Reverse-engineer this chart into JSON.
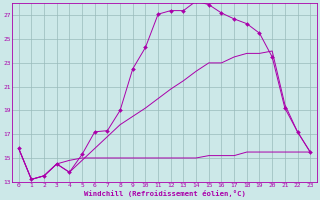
{
  "xlabel": "Windchill (Refroidissement éolien,°C)",
  "bg_color": "#cce8e8",
  "line_color": "#aa00aa",
  "grid_color": "#99bbbb",
  "xlim": [
    -0.5,
    23.5
  ],
  "ylim": [
    13,
    28
  ],
  "xticks": [
    0,
    1,
    2,
    3,
    4,
    5,
    6,
    7,
    8,
    9,
    10,
    11,
    12,
    13,
    14,
    15,
    16,
    17,
    18,
    19,
    20,
    21,
    22,
    23
  ],
  "yticks": [
    13,
    15,
    17,
    19,
    21,
    23,
    25,
    27
  ],
  "series1_x": [
    0,
    1,
    2,
    3,
    4,
    5,
    6,
    7,
    8,
    9,
    10,
    11,
    12,
    13,
    14,
    15,
    16,
    17,
    18,
    19,
    20,
    21,
    22,
    23
  ],
  "series1_y": [
    15.8,
    13.2,
    13.5,
    14.5,
    13.8,
    15.3,
    17.2,
    17.3,
    19.0,
    22.5,
    24.3,
    27.1,
    27.4,
    27.4,
    28.2,
    27.9,
    27.2,
    26.7,
    26.3,
    25.5,
    23.5,
    19.2,
    17.2,
    15.5
  ],
  "series2_x": [
    0,
    1,
    2,
    3,
    4,
    5,
    6,
    7,
    8,
    9,
    10,
    11,
    12,
    13,
    14,
    15,
    16,
    17,
    18,
    19,
    20,
    21,
    22,
    23
  ],
  "series2_y": [
    15.8,
    13.2,
    13.5,
    14.5,
    14.8,
    15.0,
    15.0,
    15.0,
    15.0,
    15.0,
    15.0,
    15.0,
    15.0,
    15.0,
    15.0,
    15.2,
    15.2,
    15.2,
    15.5,
    15.5,
    15.5,
    15.5,
    15.5,
    15.5
  ],
  "series3_x": [
    0,
    1,
    2,
    3,
    4,
    5,
    6,
    7,
    8,
    9,
    10,
    11,
    12,
    13,
    14,
    15,
    16,
    17,
    18,
    19,
    20,
    21,
    22,
    23
  ],
  "series3_y": [
    15.8,
    13.2,
    13.5,
    14.5,
    13.8,
    14.8,
    15.8,
    16.8,
    17.8,
    18.5,
    19.2,
    20.0,
    20.8,
    21.5,
    22.3,
    23.0,
    23.0,
    23.5,
    23.8,
    23.8,
    24.0,
    19.5,
    17.2,
    15.5
  ],
  "tick_fontsize": 4.5,
  "xlabel_fontsize": 5.2
}
